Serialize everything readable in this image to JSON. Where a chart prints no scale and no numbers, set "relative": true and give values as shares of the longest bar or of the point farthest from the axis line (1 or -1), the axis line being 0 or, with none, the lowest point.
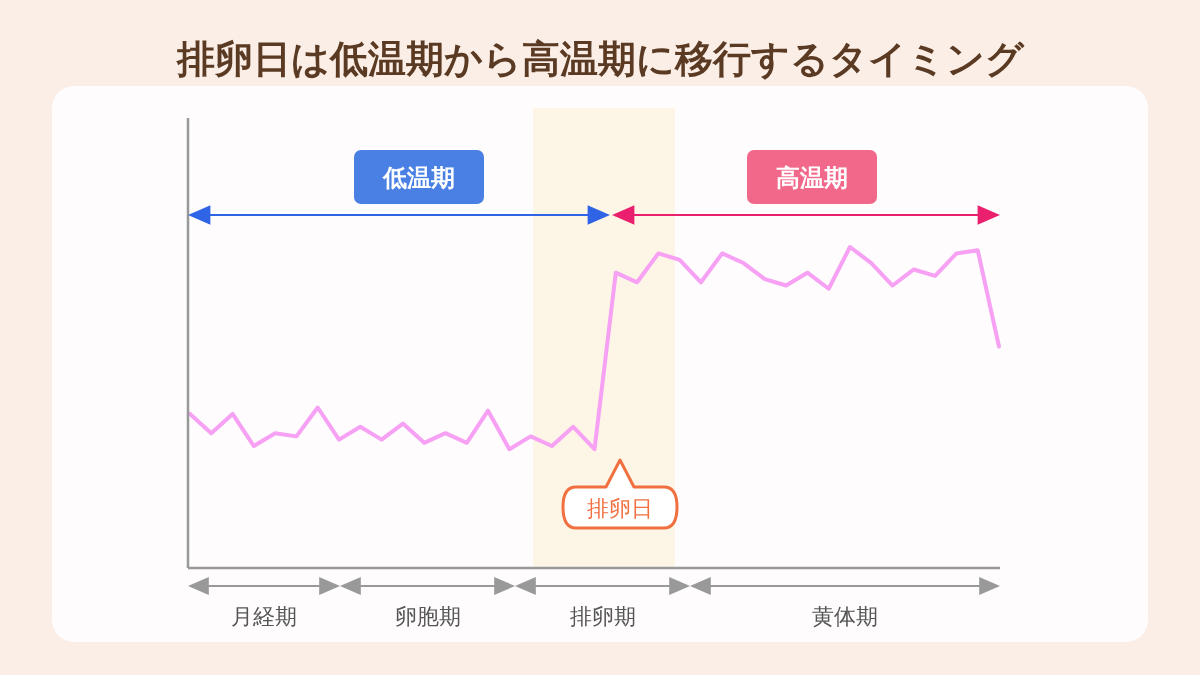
{
  "chart_data": {
    "type": "line",
    "title": "排卵日は低温期から高温期に移行するタイミング",
    "relative": true,
    "categories": [
      null,
      null,
      null,
      null,
      null,
      null,
      null,
      null,
      null,
      null,
      null,
      null,
      null,
      null,
      null,
      null,
      null,
      null,
      null,
      null,
      null,
      null,
      null,
      null,
      null,
      null,
      null,
      null,
      null,
      null,
      null,
      null,
      null,
      null,
      null,
      null,
      null,
      null,
      null
    ],
    "series": [
      {
        "color": "#f7a1f4",
        "values": [
          0.48,
          0.42,
          0.48,
          0.38,
          0.42,
          0.41,
          0.5,
          0.4,
          0.44,
          0.4,
          0.45,
          0.39,
          0.42,
          0.39,
          0.49,
          0.37,
          0.41,
          0.38,
          0.44,
          0.37,
          0.92,
          0.89,
          0.98,
          0.96,
          0.89,
          0.98,
          0.95,
          0.9,
          0.88,
          0.92,
          0.87,
          1,
          0.95,
          0.88,
          0.93,
          0.91,
          0.98,
          0.99,
          0.69
        ]
      }
    ],
    "annotations": [
      "低温期",
      "高温期",
      "排卵日",
      "月経期",
      "卵胞期",
      "排卵期",
      "黄体期"
    ],
    "marker": "none",
    "line_style": "solid"
  }
}
